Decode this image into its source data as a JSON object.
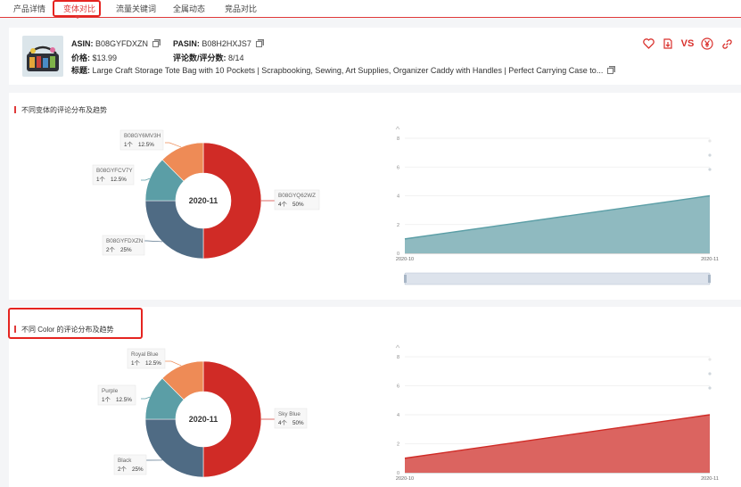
{
  "tabs": [
    {
      "label": "产品详情",
      "active": false
    },
    {
      "label": "变体对比",
      "active": true
    },
    {
      "label": "流量关键词",
      "active": false
    },
    {
      "label": "全属动态",
      "active": false
    },
    {
      "label": "竞品对比",
      "active": false
    }
  ],
  "product": {
    "asin_label": "ASIN:",
    "asin": "B08GYFDXZN",
    "pasin_label": "PASIN:",
    "pasin": "B08H2HXJS7",
    "price_label": "价格:",
    "price": "$13.99",
    "reviews_label": "评论数/评分数:",
    "reviews": "8/14",
    "title_label": "标题:",
    "title": "Large Craft Storage Tote Bag with 10 Pockets | Scrapbooking, Sewing, Art Supplies, Organizer Caddy with Handles | Perfect Carrying Case to...",
    "actions": [
      "heart-icon",
      "download-icon",
      "VS",
      "yen-icon",
      "link-icon"
    ]
  },
  "section1": {
    "title": "不同变体的评论分布及趋势",
    "center_label": "2020-11",
    "chart_data": {
      "type": "pie",
      "title": "不同变体的评论分布及趋势",
      "slices": [
        {
          "name": "B08GYQ62WZ",
          "count_label": "4个",
          "pct_label": "50%",
          "value": 50,
          "color": "#d02b26"
        },
        {
          "name": "B08GYFDXZN",
          "count_label": "2个",
          "pct_label": "25%",
          "value": 25,
          "color": "#4f6b84"
        },
        {
          "name": "B08GYFCV7Y",
          "count_label": "1个",
          "pct_label": "12.5%",
          "value": 12.5,
          "color": "#5b9ea6"
        },
        {
          "name": "B08GY6MV3H",
          "count_label": "1个",
          "pct_label": "12.5%",
          "value": 12.5,
          "color": "#ee8b56"
        }
      ]
    },
    "trend": {
      "type": "area",
      "x": [
        "2020-10",
        "2020-11"
      ],
      "values": [
        1,
        4
      ],
      "ylim": [
        0,
        8
      ],
      "yticks": [
        "0",
        "2",
        "4",
        "6",
        "8"
      ],
      "fill": "#8fbac0",
      "line": "#5b9ea6"
    }
  },
  "section2": {
    "title": "不同 Color 的评论分布及趋势",
    "center_label": "2020-11",
    "chart_data": {
      "type": "pie",
      "title": "不同 Color 的评论分布及趋势",
      "slices": [
        {
          "name": "Sky Blue",
          "count_label": "4个",
          "pct_label": "50%",
          "value": 50,
          "color": "#d02b26"
        },
        {
          "name": "Black",
          "count_label": "2个",
          "pct_label": "25%",
          "value": 25,
          "color": "#4f6b84"
        },
        {
          "name": "Purple",
          "count_label": "1个",
          "pct_label": "12.5%",
          "value": 12.5,
          "color": "#5b9ea6"
        },
        {
          "name": "Royal Blue",
          "count_label": "1个",
          "pct_label": "12.5%",
          "value": 12.5,
          "color": "#ee8b56"
        }
      ]
    },
    "trend": {
      "type": "area",
      "x": [
        "2020-10",
        "2020-11"
      ],
      "values": [
        1,
        4
      ],
      "ylim": [
        0,
        8
      ],
      "yticks": [
        "0",
        "2",
        "4",
        "6",
        "8"
      ],
      "fill": "#db6460",
      "line": "#d02b26"
    }
  }
}
